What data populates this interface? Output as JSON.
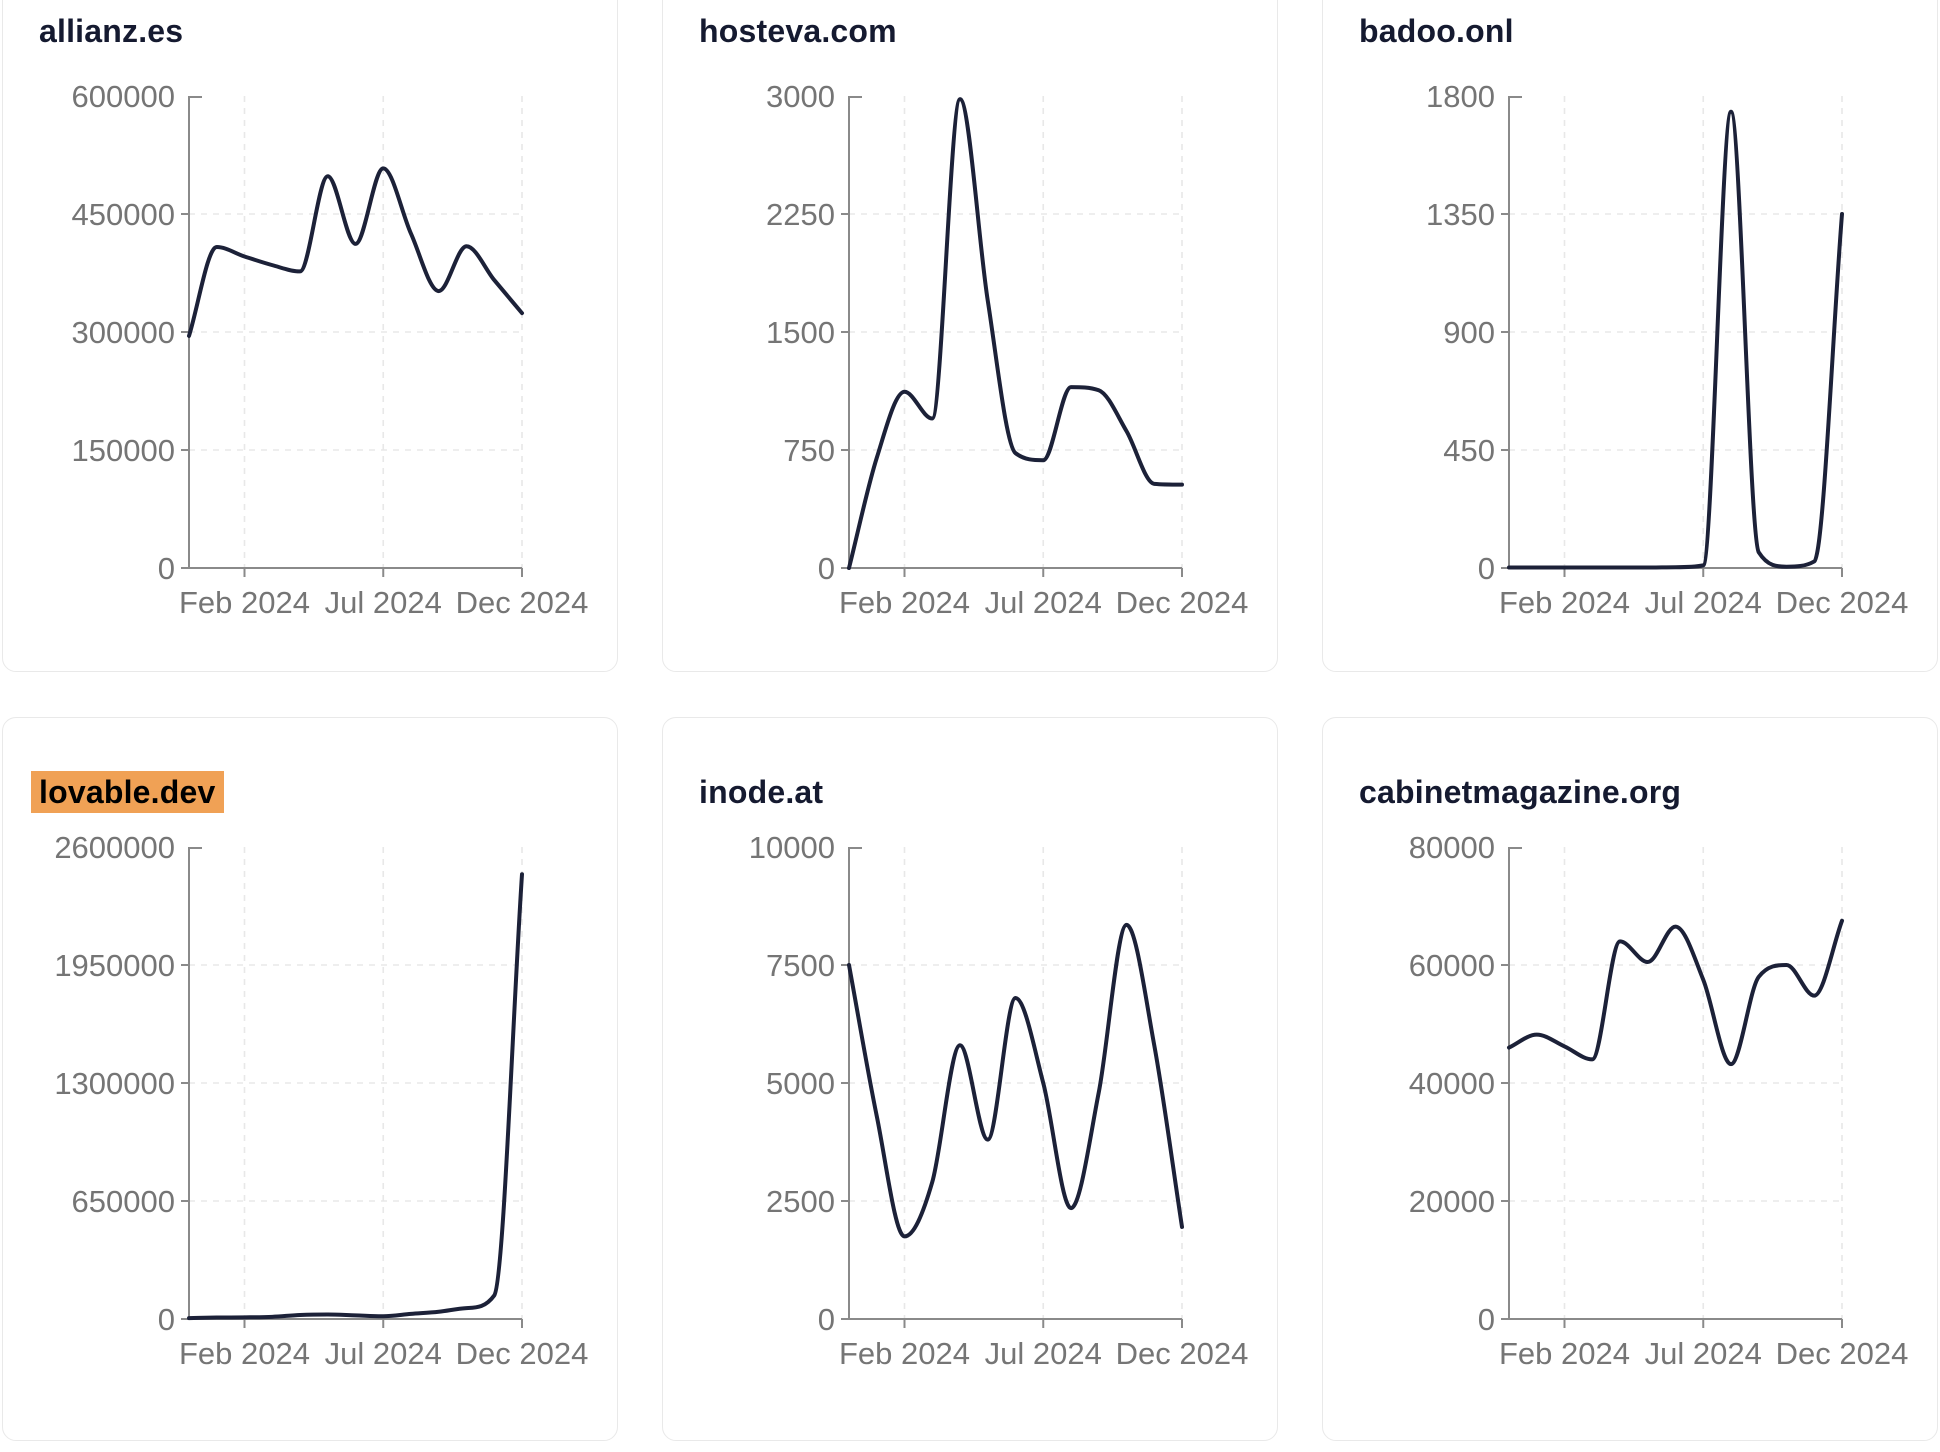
{
  "page": {
    "description": "Dashboard grid of six domain traffic line charts, monthly data Dec 2023 - Dec 2024"
  },
  "style": {
    "line_color": "#1c2138",
    "title_color": "#151a30",
    "tick_label_color": "#757575",
    "axis_color": "#8a8a8a",
    "grid_color": "#e8e8e8",
    "card_border_color": "#e9e9e9",
    "card_bg": "#ffffff",
    "page_bg": "#ffffff",
    "highlight_bg": "#f0a155",
    "highlight_text": "#000000"
  },
  "cards": [
    {
      "title": "allianz.es",
      "highlighted": false,
      "chart_data": {
        "type": "line",
        "x": [
          "Dec 2023",
          "Jan 2024",
          "Feb 2024",
          "Mar 2024",
          "Apr 2024",
          "May 2024",
          "Jun 2024",
          "Jul 2024",
          "Aug 2024",
          "Sep 2024",
          "Oct 2024",
          "Nov 2024",
          "Dec 2024"
        ],
        "values": [
          295000,
          408000,
          396000,
          385000,
          377000,
          498000,
          412000,
          508000,
          425000,
          352000,
          409000,
          366000,
          324000
        ],
        "ylim": [
          0,
          600000
        ],
        "y_ticks": [
          0,
          150000,
          300000,
          450000,
          600000
        ],
        "x_tick_labels": [
          "Feb 2024",
          "Jul 2024",
          "Dec 2024"
        ],
        "x_tick_indices": [
          2,
          7,
          12
        ],
        "grid": "dashed",
        "legend": false
      }
    },
    {
      "title": "hosteva.com",
      "highlighted": false,
      "chart_data": {
        "type": "line",
        "x": [
          "Dec 2023",
          "Jan 2024",
          "Feb 2024",
          "Mar 2024",
          "Apr 2024",
          "May 2024",
          "Jun 2024",
          "Jul 2024",
          "Aug 2024",
          "Sep 2024",
          "Oct 2024",
          "Nov 2024",
          "Dec 2024"
        ],
        "values": [
          0,
          700,
          1120,
          950,
          2980,
          1700,
          730,
          685,
          1150,
          1130,
          870,
          535,
          530
        ],
        "ylim": [
          0,
          3000
        ],
        "y_ticks": [
          0,
          750,
          1500,
          2250,
          3000
        ],
        "x_tick_labels": [
          "Feb 2024",
          "Jul 2024",
          "Dec 2024"
        ],
        "x_tick_indices": [
          2,
          7,
          12
        ],
        "grid": "dashed",
        "legend": false
      }
    },
    {
      "title": "badoo.onl",
      "highlighted": false,
      "chart_data": {
        "type": "line",
        "x": [
          "Dec 2023",
          "Jan 2024",
          "Feb 2024",
          "Mar 2024",
          "Apr 2024",
          "May 2024",
          "Jun 2024",
          "Jul 2024",
          "Aug 2024",
          "Sep 2024",
          "Oct 2024",
          "Nov 2024",
          "Dec 2024"
        ],
        "values": [
          2,
          2,
          2,
          2,
          2,
          2,
          3,
          10,
          1740,
          60,
          5,
          25,
          1350
        ],
        "ylim": [
          0,
          1800
        ],
        "y_ticks": [
          0,
          450,
          900,
          1350,
          1800
        ],
        "x_tick_labels": [
          "Feb 2024",
          "Jul 2024",
          "Dec 2024"
        ],
        "x_tick_indices": [
          2,
          7,
          12
        ],
        "grid": "dashed",
        "legend": false
      }
    },
    {
      "title": "lovable.dev",
      "highlighted": true,
      "chart_data": {
        "type": "line",
        "x": [
          "Dec 2023",
          "Jan 2024",
          "Feb 2024",
          "Mar 2024",
          "Apr 2024",
          "May 2024",
          "Jun 2024",
          "Jul 2024",
          "Aug 2024",
          "Sep 2024",
          "Oct 2024",
          "Nov 2024",
          "Dec 2024"
        ],
        "values": [
          5000,
          8000,
          9000,
          12000,
          22000,
          25000,
          20000,
          15000,
          28000,
          40000,
          60000,
          130000,
          2450000
        ],
        "ylim": [
          0,
          2600000
        ],
        "y_ticks": [
          0,
          650000,
          1300000,
          1950000,
          2600000
        ],
        "x_tick_labels": [
          "Feb 2024",
          "Jul 2024",
          "Dec 2024"
        ],
        "x_tick_indices": [
          2,
          7,
          12
        ],
        "grid": "dashed",
        "legend": false
      }
    },
    {
      "title": "inode.at",
      "highlighted": false,
      "chart_data": {
        "type": "line",
        "x": [
          "Dec 2023",
          "Jan 2024",
          "Feb 2024",
          "Mar 2024",
          "Apr 2024",
          "May 2024",
          "Jun 2024",
          "Jul 2024",
          "Aug 2024",
          "Sep 2024",
          "Oct 2024",
          "Nov 2024",
          "Dec 2024"
        ],
        "values": [
          7500,
          4300,
          1750,
          2900,
          5800,
          3800,
          6800,
          5000,
          2350,
          4800,
          8350,
          5800,
          1950
        ],
        "ylim": [
          0,
          10000
        ],
        "y_ticks": [
          0,
          2500,
          5000,
          7500,
          10000
        ],
        "x_tick_labels": [
          "Feb 2024",
          "Jul 2024",
          "Dec 2024"
        ],
        "x_tick_indices": [
          2,
          7,
          12
        ],
        "grid": "dashed",
        "legend": false
      }
    },
    {
      "title": "cabinetmagazine.org",
      "highlighted": false,
      "chart_data": {
        "type": "line",
        "x": [
          "Dec 2023",
          "Jan 2024",
          "Feb 2024",
          "Mar 2024",
          "Apr 2024",
          "May 2024",
          "Jun 2024",
          "Jul 2024",
          "Aug 2024",
          "Sep 2024",
          "Oct 2024",
          "Nov 2024",
          "Dec 2024"
        ],
        "values": [
          46000,
          48200,
          46200,
          44000,
          64000,
          60500,
          66500,
          57500,
          43200,
          58000,
          60000,
          54800,
          67500
        ],
        "ylim": [
          0,
          80000
        ],
        "y_ticks": [
          0,
          20000,
          40000,
          60000,
          80000
        ],
        "x_tick_labels": [
          "Feb 2024",
          "Jul 2024",
          "Dec 2024"
        ],
        "x_tick_indices": [
          2,
          7,
          12
        ],
        "grid": "dashed",
        "legend": false
      }
    }
  ]
}
